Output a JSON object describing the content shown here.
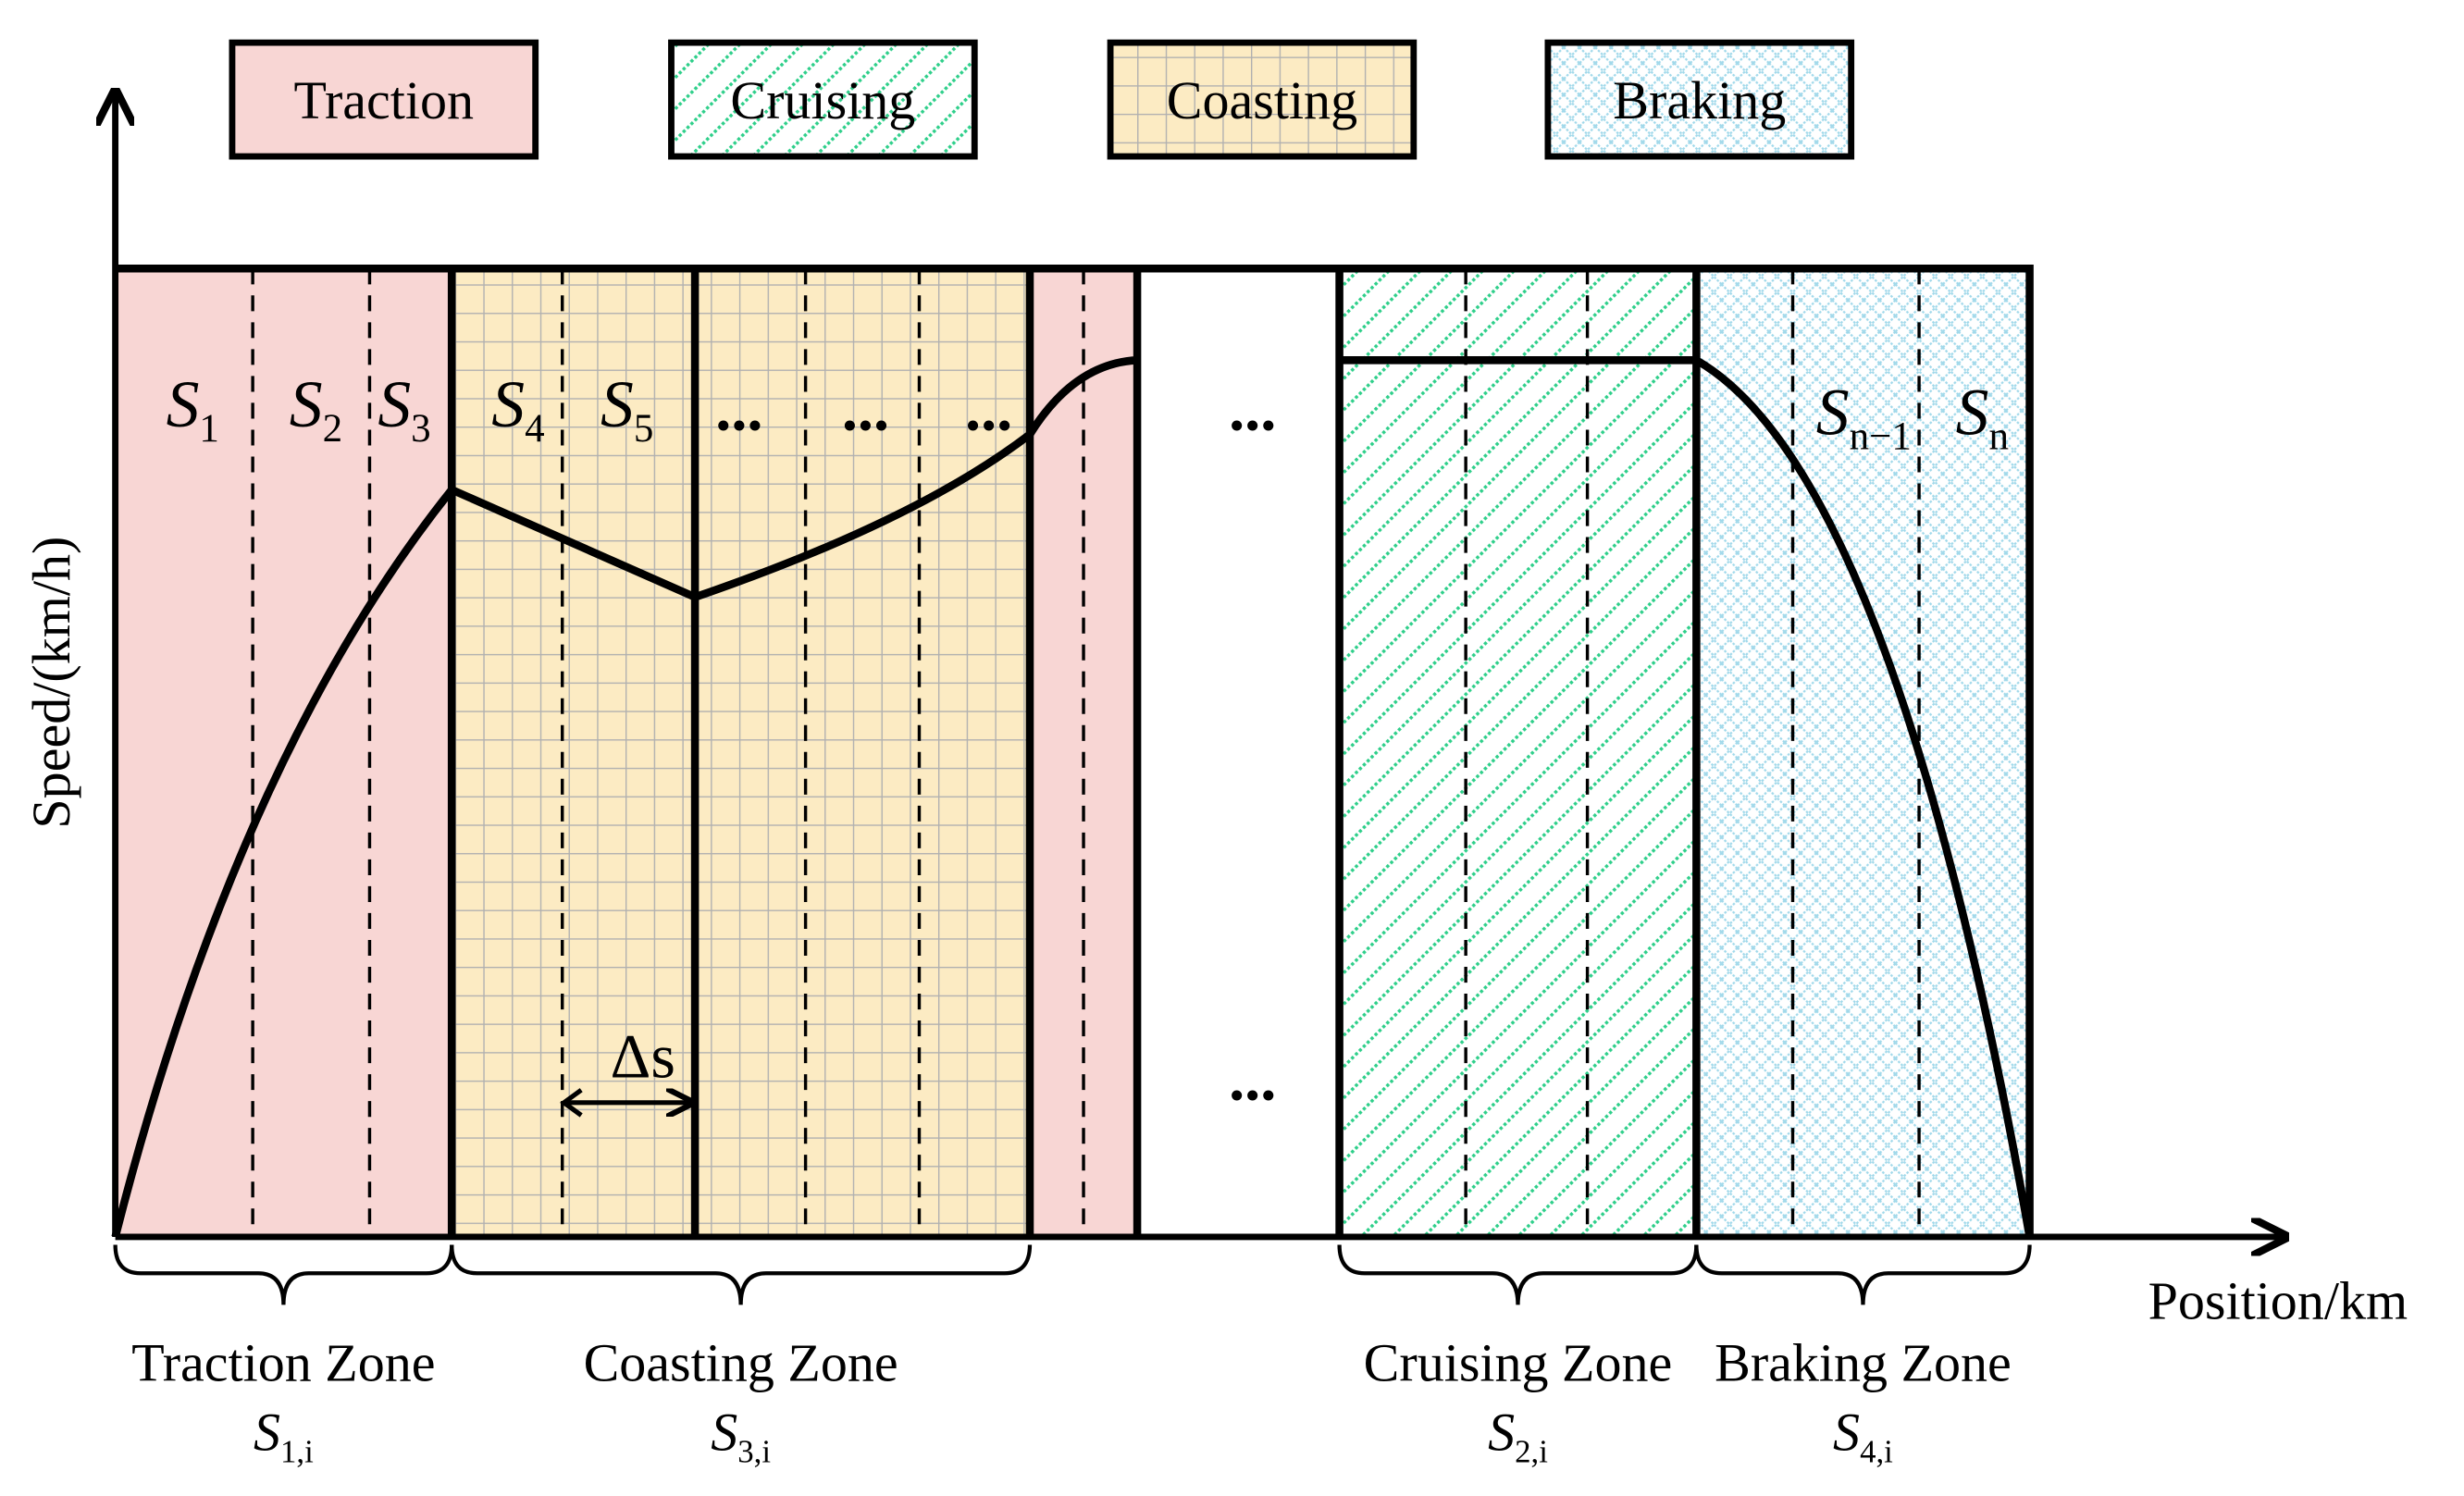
{
  "legend": [
    "Traction",
    "Cruising",
    "Coasting",
    "Braking"
  ],
  "axes": {
    "y_label": "Speed/(km/h)",
    "x_label": "Position/km"
  },
  "segments": [
    {
      "base": "S",
      "sub": "1"
    },
    {
      "base": "S",
      "sub": "2"
    },
    {
      "base": "S",
      "sub": "3"
    },
    {
      "base": "S",
      "sub": "4"
    },
    {
      "base": "S",
      "sub": "5"
    },
    {
      "base": "S",
      "sub": "n−1"
    },
    {
      "base": "S",
      "sub": "n"
    }
  ],
  "ellipses": [
    "...",
    "...",
    "...",
    "...",
    "..."
  ],
  "delta": "Δs",
  "zones": [
    {
      "name": "Traction Zone",
      "base": "S",
      "sub": "1,i"
    },
    {
      "name": "Coasting Zone",
      "base": "S",
      "sub": "3,i"
    },
    {
      "name": "Cruising Zone",
      "base": "S",
      "sub": "2,i"
    },
    {
      "name": "Braking Zone",
      "base": "S",
      "sub": "4,i"
    }
  ]
}
